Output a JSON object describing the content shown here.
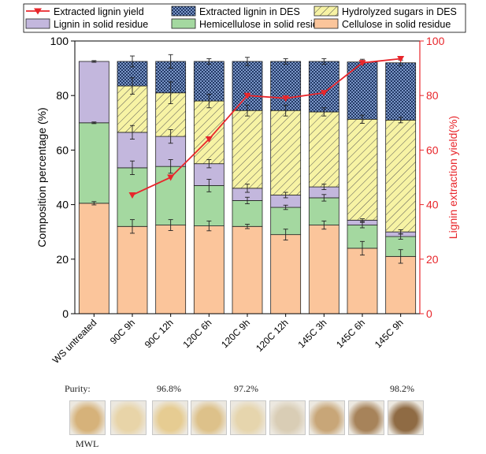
{
  "chart_data": {
    "type": "bar",
    "stacked": true,
    "categories": [
      "WS untreated",
      "90C 9h",
      "90C 12h",
      "120C 6h",
      "120C 9h",
      "120C 12h",
      "145C 3h",
      "145C 6h",
      "145C 9h"
    ],
    "ylabel": "Composition percentage (%)",
    "y2label": "Lignin extraction yield(%)",
    "ylim": [
      0,
      100
    ],
    "y2lim": [
      0,
      100
    ],
    "yticks": [
      0,
      20,
      40,
      60,
      80,
      100
    ],
    "series": [
      {
        "name": "Cellulose in solid residue",
        "values": [
          40.5,
          32.0,
          32.5,
          32.2,
          32.0,
          29.0,
          32.5,
          24.0,
          21.0
        ],
        "errors": [
          0.6,
          2.5,
          2.0,
          1.8,
          0.8,
          2.0,
          1.5,
          2.5,
          2.5
        ],
        "color": "#fbc59b"
      },
      {
        "name": "Hemicellulose in solid residue",
        "values": [
          29.5,
          21.5,
          21.5,
          14.8,
          9.5,
          10.0,
          10.0,
          8.5,
          7.3
        ],
        "errors": [
          0.3,
          2.5,
          2.5,
          2.3,
          1.2,
          0.8,
          1.2,
          1.0,
          1.0
        ],
        "color": "#a4d8a0"
      },
      {
        "name": "Lignin in solid residue",
        "values": [
          22.5,
          13.0,
          11.0,
          8.0,
          4.5,
          4.5,
          4.0,
          1.8,
          1.7
        ],
        "errors": [
          0.3,
          2.5,
          2.5,
          1.5,
          1.5,
          1.0,
          1.0,
          0.5,
          0.8
        ],
        "color": "#c3b7dd"
      },
      {
        "name": "Hydrolyzed sugars in DES",
        "values": [
          0,
          17.0,
          16.0,
          23.0,
          28.5,
          31.0,
          27.5,
          37.0,
          41.0
        ],
        "errors": [
          0,
          3.0,
          4.0,
          2.5,
          2.0,
          2.0,
          1.5,
          1.5,
          1.0
        ],
        "color": "#f7f3a4"
      },
      {
        "name": "Extracted lignin in DES",
        "values": [
          0,
          9.0,
          11.5,
          14.5,
          18.0,
          18.0,
          18.5,
          21.0,
          21.0
        ],
        "errors": [
          0,
          2.0,
          2.5,
          1.0,
          1.5,
          1.0,
          1.0,
          1.0,
          1.0
        ],
        "color": "#233a66"
      }
    ],
    "line_series": {
      "name": "Extracted lignin yield",
      "x": [
        "90C 9h",
        "90C 12h",
        "120C 6h",
        "120C 9h",
        "120C 12h",
        "145C 3h",
        "145C 6h",
        "145C 9h"
      ],
      "values": [
        43.5,
        50.0,
        64.0,
        80.0,
        79.0,
        81.0,
        92.0,
        93.5
      ],
      "color": "#e8262b"
    },
    "legend": [
      {
        "name": "Extracted lignin yield",
        "kind": "line"
      },
      {
        "name": "Extracted lignin in DES",
        "kind": "checker"
      },
      {
        "name": "Hydrolyzed sugars in DES",
        "kind": "hatch"
      },
      {
        "name": "Lignin in solid residue",
        "kind": "fill"
      },
      {
        "name": "Hemicellulose in solid residue",
        "kind": "fill"
      },
      {
        "name": "Cellulose in solid residue",
        "kind": "fill"
      }
    ]
  },
  "purity": {
    "label": "Purity:",
    "values": [
      "96.8%",
      "97.2%",
      "98.2%"
    ]
  },
  "samples": {
    "colors": [
      "#d6b27a",
      "#e8d4a8",
      "#e6cc92",
      "#ddc18a",
      "#e6d5ad",
      "#d9cdb5",
      "#c8a678",
      "#a7835a",
      "#8f6b44"
    ],
    "caption": "MWL"
  }
}
